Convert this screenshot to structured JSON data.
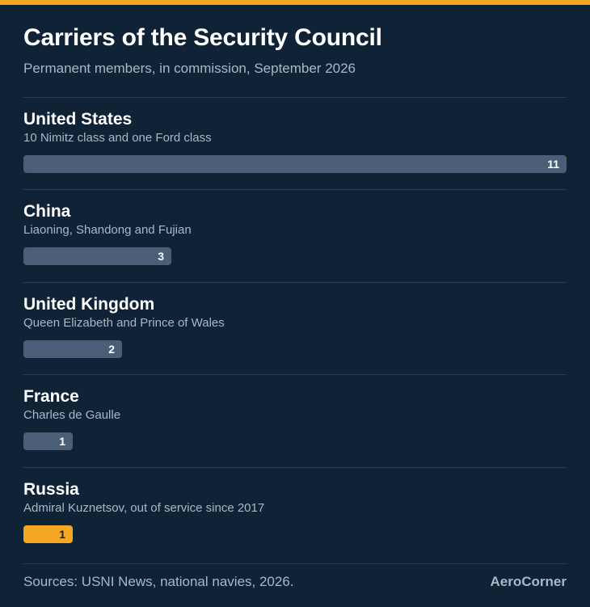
{
  "colors": {
    "background": "#0f2236",
    "accent": "#f5a623",
    "bar": "#4a5e77",
    "divider": "#2a3d52",
    "muted_text": "#aab8c6"
  },
  "header": {
    "title": "Carriers of the Security Council",
    "subtitle": "Permanent members, in commission, September 2026"
  },
  "chart_data": {
    "type": "bar",
    "orientation": "horizontal",
    "title": "Carriers of the Security Council",
    "subtitle": "Permanent members, in commission, September 2026",
    "xlim": [
      0,
      11
    ],
    "categories": [
      "United States",
      "China",
      "United Kingdom",
      "France",
      "Russia"
    ],
    "values": [
      11,
      3,
      2,
      1,
      1
    ],
    "descriptions": [
      "10 Nimitz class and one Ford class",
      "Liaoning, Shandong and Fujian",
      "Queen Elizabeth and Prince of Wales",
      "Charles de Gaulle",
      "Admiral Kuznetsov, out of service since 2017"
    ],
    "highlighted": [
      false,
      false,
      false,
      false,
      true
    ],
    "value_labels": [
      "11",
      "3",
      "2",
      "1",
      "1"
    ]
  },
  "footer": {
    "sources": "Sources: USNI News, national navies, 2026.",
    "brand": "AeroCorner"
  }
}
